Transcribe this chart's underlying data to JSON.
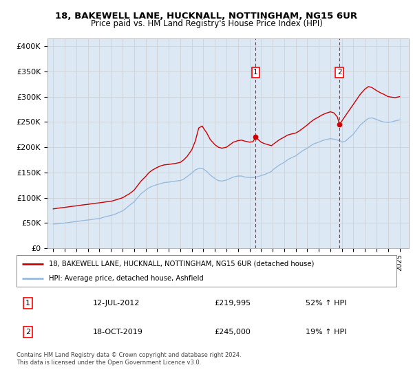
{
  "title": "18, BAKEWELL LANE, HUCKNALL, NOTTINGHAM, NG15 6UR",
  "subtitle": "Price paid vs. HM Land Registry's House Price Index (HPI)",
  "ylabel_ticks": [
    "£0",
    "£50K",
    "£100K",
    "£150K",
    "£200K",
    "£250K",
    "£300K",
    "£350K",
    "£400K"
  ],
  "ytick_values": [
    0,
    50000,
    100000,
    150000,
    200000,
    250000,
    300000,
    350000,
    400000
  ],
  "ylim": [
    0,
    415000
  ],
  "xlim_start": 1994.5,
  "xlim_end": 2025.8,
  "xtick_years": [
    1995,
    1996,
    1997,
    1998,
    1999,
    2000,
    2001,
    2002,
    2003,
    2004,
    2005,
    2006,
    2007,
    2008,
    2009,
    2010,
    2011,
    2012,
    2013,
    2014,
    2015,
    2016,
    2017,
    2018,
    2019,
    2020,
    2021,
    2022,
    2023,
    2024,
    2025
  ],
  "grid_color": "#cccccc",
  "background_color": "#dde8f5",
  "fig_bg_color": "#ffffff",
  "red_line_color": "#cc0000",
  "blue_line_color": "#99bbdd",
  "marker1_x": 2012.53,
  "marker1_y": 219995,
  "marker2_x": 2019.8,
  "marker2_y": 245000,
  "legend_line1": "18, BAKEWELL LANE, HUCKNALL, NOTTINGHAM, NG15 6UR (detached house)",
  "legend_line2": "HPI: Average price, detached house, Ashfield",
  "table_row1_num": "1",
  "table_row1_date": "12-JUL-2012",
  "table_row1_price": "£219,995",
  "table_row1_hpi": "52% ↑ HPI",
  "table_row2_num": "2",
  "table_row2_date": "18-OCT-2019",
  "table_row2_price": "£245,000",
  "table_row2_hpi": "19% ↑ HPI",
  "footer": "Contains HM Land Registry data © Crown copyright and database right 2024.\nThis data is licensed under the Open Government Licence v3.0.",
  "red_data": [
    [
      1995.0,
      78000
    ],
    [
      1995.3,
      79000
    ],
    [
      1995.6,
      80000
    ],
    [
      1996.0,
      81000
    ],
    [
      1996.3,
      82000
    ],
    [
      1996.6,
      83000
    ],
    [
      1997.0,
      84000
    ],
    [
      1997.3,
      85000
    ],
    [
      1997.6,
      86000
    ],
    [
      1998.0,
      87000
    ],
    [
      1998.3,
      88000
    ],
    [
      1998.6,
      89000
    ],
    [
      1999.0,
      90000
    ],
    [
      1999.3,
      91000
    ],
    [
      1999.6,
      92000
    ],
    [
      2000.0,
      93000
    ],
    [
      2000.3,
      95000
    ],
    [
      2000.6,
      97000
    ],
    [
      2001.0,
      100000
    ],
    [
      2001.3,
      104000
    ],
    [
      2001.6,
      108000
    ],
    [
      2002.0,
      115000
    ],
    [
      2002.3,
      124000
    ],
    [
      2002.6,
      133000
    ],
    [
      2003.0,
      142000
    ],
    [
      2003.3,
      150000
    ],
    [
      2003.6,
      155000
    ],
    [
      2004.0,
      160000
    ],
    [
      2004.3,
      163000
    ],
    [
      2004.6,
      165000
    ],
    [
      2005.0,
      166000
    ],
    [
      2005.3,
      167000
    ],
    [
      2005.6,
      168000
    ],
    [
      2006.0,
      170000
    ],
    [
      2006.3,
      175000
    ],
    [
      2006.6,
      182000
    ],
    [
      2007.0,
      195000
    ],
    [
      2007.3,
      212000
    ],
    [
      2007.6,
      238000
    ],
    [
      2007.9,
      242000
    ],
    [
      2008.0,
      238000
    ],
    [
      2008.3,
      228000
    ],
    [
      2008.6,
      215000
    ],
    [
      2009.0,
      205000
    ],
    [
      2009.3,
      200000
    ],
    [
      2009.6,
      198000
    ],
    [
      2010.0,
      200000
    ],
    [
      2010.3,
      205000
    ],
    [
      2010.6,
      210000
    ],
    [
      2011.0,
      213000
    ],
    [
      2011.3,
      214000
    ],
    [
      2011.6,
      212000
    ],
    [
      2012.0,
      210000
    ],
    [
      2012.3,
      211000
    ],
    [
      2012.53,
      219995
    ],
    [
      2012.8,
      214000
    ],
    [
      2013.0,
      210000
    ],
    [
      2013.3,
      207000
    ],
    [
      2013.6,
      205000
    ],
    [
      2013.9,
      203000
    ],
    [
      2014.0,
      205000
    ],
    [
      2014.3,
      210000
    ],
    [
      2014.6,
      215000
    ],
    [
      2015.0,
      220000
    ],
    [
      2015.3,
      224000
    ],
    [
      2015.6,
      226000
    ],
    [
      2016.0,
      228000
    ],
    [
      2016.3,
      232000
    ],
    [
      2016.6,
      237000
    ],
    [
      2017.0,
      244000
    ],
    [
      2017.3,
      250000
    ],
    [
      2017.6,
      255000
    ],
    [
      2018.0,
      260000
    ],
    [
      2018.3,
      264000
    ],
    [
      2018.6,
      267000
    ],
    [
      2019.0,
      270000
    ],
    [
      2019.3,
      268000
    ],
    [
      2019.6,
      260000
    ],
    [
      2019.8,
      245000
    ],
    [
      2020.0,
      252000
    ],
    [
      2020.3,
      262000
    ],
    [
      2020.6,
      272000
    ],
    [
      2021.0,
      285000
    ],
    [
      2021.3,
      295000
    ],
    [
      2021.6,
      305000
    ],
    [
      2022.0,
      315000
    ],
    [
      2022.3,
      320000
    ],
    [
      2022.6,
      318000
    ],
    [
      2023.0,
      312000
    ],
    [
      2023.3,
      308000
    ],
    [
      2023.6,
      305000
    ],
    [
      2024.0,
      300000
    ],
    [
      2024.3,
      299000
    ],
    [
      2024.6,
      298000
    ],
    [
      2025.0,
      300000
    ]
  ],
  "blue_data": [
    [
      1995.0,
      48000
    ],
    [
      1995.3,
      48500
    ],
    [
      1995.6,
      49000
    ],
    [
      1996.0,
      50000
    ],
    [
      1996.3,
      51000
    ],
    [
      1996.6,
      52000
    ],
    [
      1997.0,
      53000
    ],
    [
      1997.3,
      54000
    ],
    [
      1997.6,
      55000
    ],
    [
      1998.0,
      56000
    ],
    [
      1998.3,
      57000
    ],
    [
      1998.6,
      58000
    ],
    [
      1999.0,
      59000
    ],
    [
      1999.3,
      61000
    ],
    [
      1999.6,
      63000
    ],
    [
      2000.0,
      65000
    ],
    [
      2000.3,
      67000
    ],
    [
      2000.6,
      70000
    ],
    [
      2001.0,
      74000
    ],
    [
      2001.3,
      79000
    ],
    [
      2001.6,
      85000
    ],
    [
      2002.0,
      92000
    ],
    [
      2002.3,
      100000
    ],
    [
      2002.6,
      108000
    ],
    [
      2003.0,
      115000
    ],
    [
      2003.3,
      120000
    ],
    [
      2003.6,
      123000
    ],
    [
      2004.0,
      126000
    ],
    [
      2004.3,
      128000
    ],
    [
      2004.6,
      130000
    ],
    [
      2005.0,
      131000
    ],
    [
      2005.3,
      132000
    ],
    [
      2005.6,
      133000
    ],
    [
      2006.0,
      134000
    ],
    [
      2006.3,
      137000
    ],
    [
      2006.6,
      142000
    ],
    [
      2007.0,
      149000
    ],
    [
      2007.3,
      155000
    ],
    [
      2007.6,
      158000
    ],
    [
      2007.9,
      158000
    ],
    [
      2008.0,
      157000
    ],
    [
      2008.3,
      152000
    ],
    [
      2008.6,
      145000
    ],
    [
      2009.0,
      138000
    ],
    [
      2009.3,
      134000
    ],
    [
      2009.6,
      133000
    ],
    [
      2010.0,
      135000
    ],
    [
      2010.3,
      138000
    ],
    [
      2010.6,
      141000
    ],
    [
      2011.0,
      143000
    ],
    [
      2011.3,
      143000
    ],
    [
      2011.6,
      141000
    ],
    [
      2012.0,
      140000
    ],
    [
      2012.3,
      140000
    ],
    [
      2012.6,
      141000
    ],
    [
      2012.9,
      143000
    ],
    [
      2013.0,
      144000
    ],
    [
      2013.3,
      146000
    ],
    [
      2013.6,
      149000
    ],
    [
      2013.9,
      152000
    ],
    [
      2014.0,
      155000
    ],
    [
      2014.3,
      160000
    ],
    [
      2014.6,
      165000
    ],
    [
      2015.0,
      170000
    ],
    [
      2015.3,
      175000
    ],
    [
      2015.6,
      179000
    ],
    [
      2016.0,
      183000
    ],
    [
      2016.3,
      188000
    ],
    [
      2016.6,
      193000
    ],
    [
      2017.0,
      198000
    ],
    [
      2017.3,
      203000
    ],
    [
      2017.6,
      207000
    ],
    [
      2018.0,
      210000
    ],
    [
      2018.3,
      213000
    ],
    [
      2018.6,
      215000
    ],
    [
      2019.0,
      217000
    ],
    [
      2019.3,
      216000
    ],
    [
      2019.6,
      214000
    ],
    [
      2019.9,
      212000
    ],
    [
      2020.0,
      210000
    ],
    [
      2020.3,
      212000
    ],
    [
      2020.6,
      218000
    ],
    [
      2021.0,
      226000
    ],
    [
      2021.3,
      235000
    ],
    [
      2021.6,
      244000
    ],
    [
      2022.0,
      252000
    ],
    [
      2022.3,
      257000
    ],
    [
      2022.6,
      258000
    ],
    [
      2023.0,
      255000
    ],
    [
      2023.3,
      252000
    ],
    [
      2023.6,
      250000
    ],
    [
      2024.0,
      249000
    ],
    [
      2024.3,
      250000
    ],
    [
      2024.6,
      252000
    ],
    [
      2025.0,
      254000
    ]
  ]
}
